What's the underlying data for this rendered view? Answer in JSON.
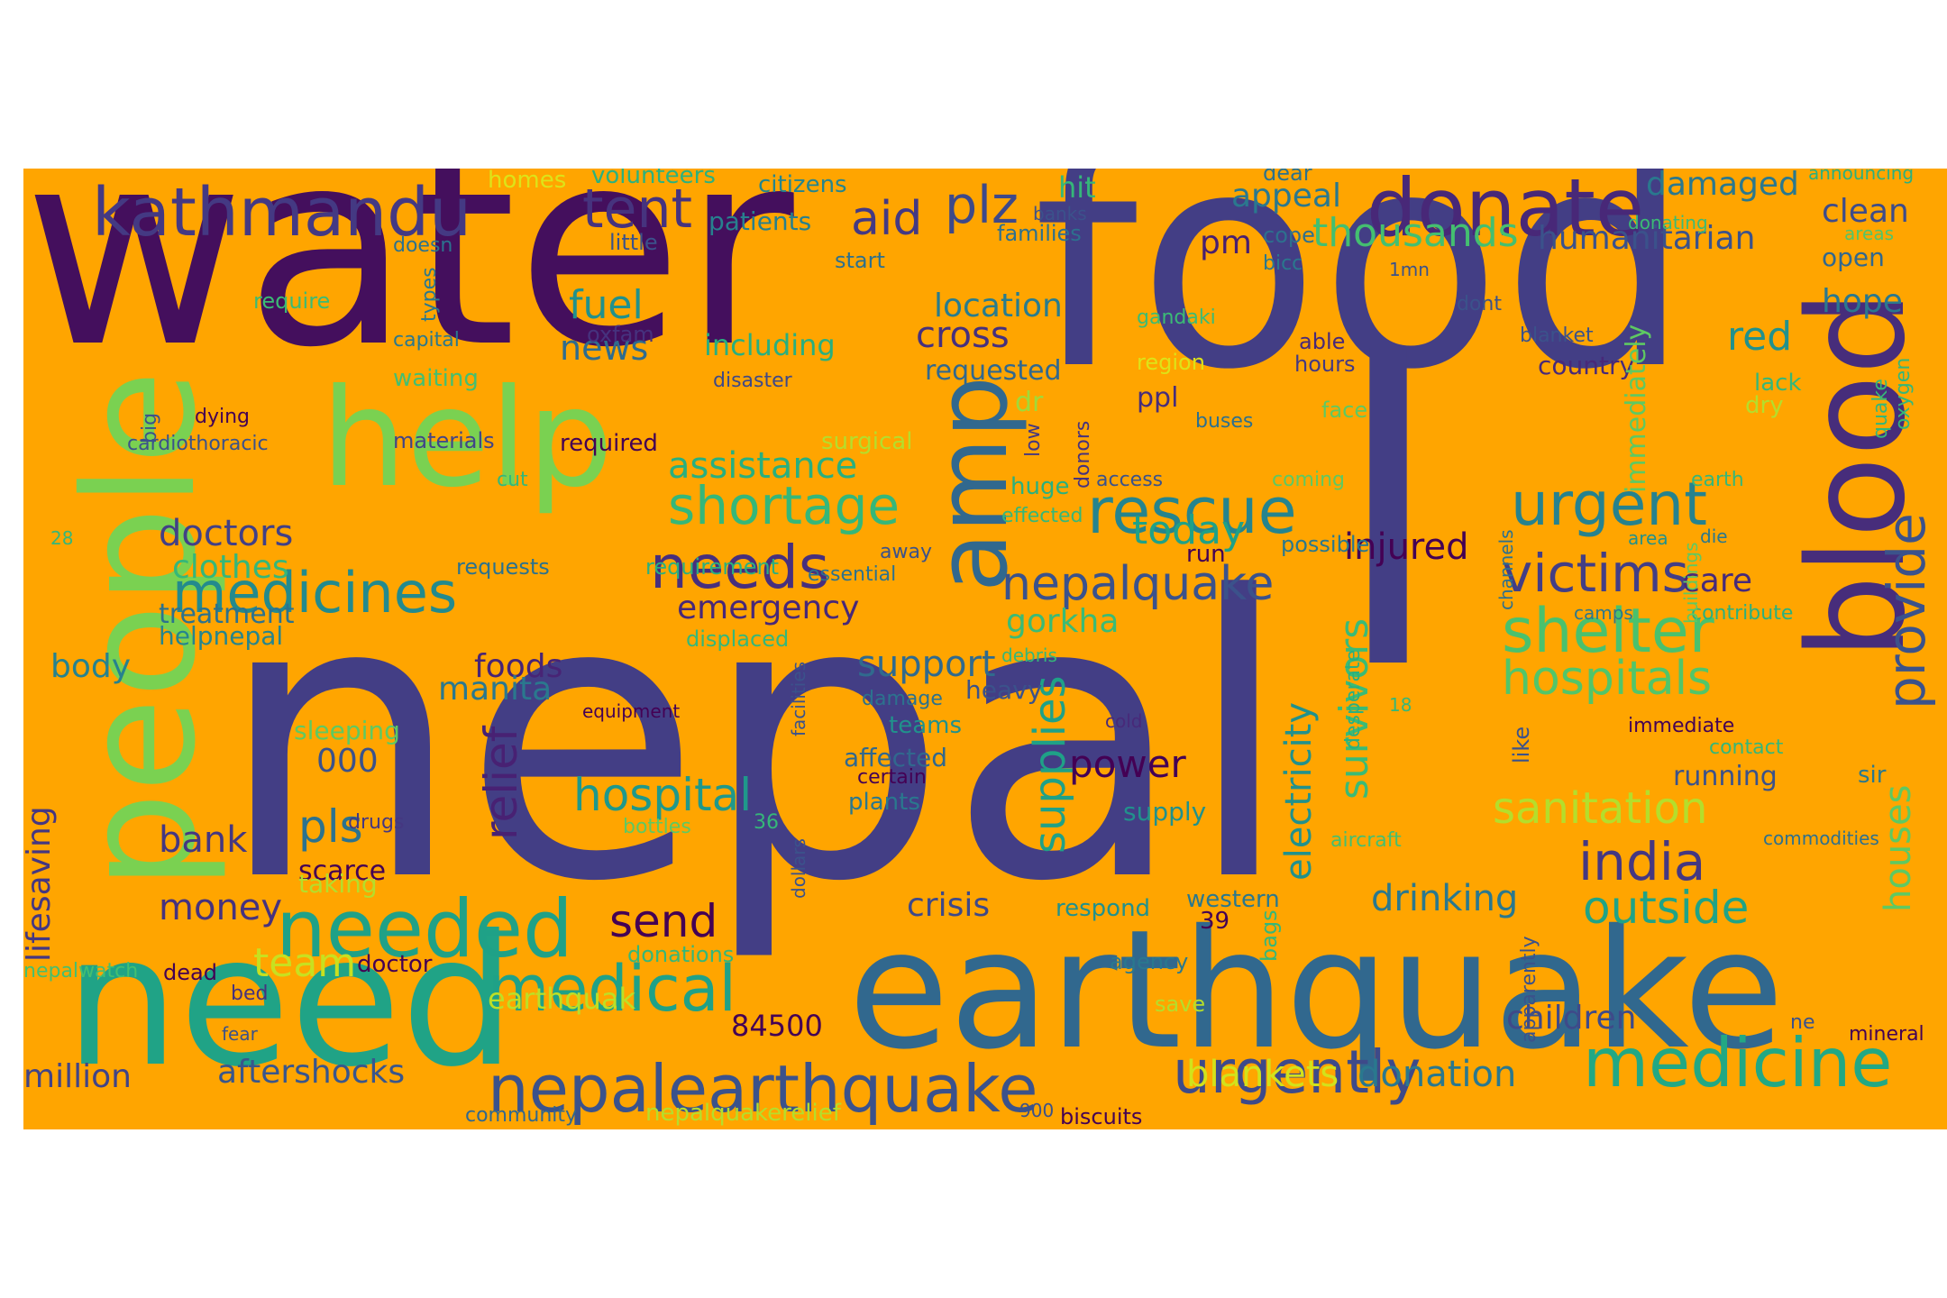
{
  "cloud": {
    "background": "#ffa500",
    "words": [
      {
        "text": "water",
        "color": "#440f5d"
      },
      {
        "text": "food",
        "color": "#433e85"
      },
      {
        "text": "nepal",
        "color": "#433e85"
      },
      {
        "text": "l",
        "color": "#433e85"
      },
      {
        "text": "earthquake",
        "color": "#31688e"
      },
      {
        "text": "need",
        "color": "#20a386"
      },
      {
        "text": "people",
        "color": "#7ad151"
      },
      {
        "text": "help",
        "color": "#7ad151"
      },
      {
        "text": "blood",
        "color": "#472d7b"
      },
      {
        "text": "amp",
        "color": "#31688e"
      },
      {
        "text": "donate",
        "color": "#482878"
      },
      {
        "text": "kathmandu",
        "color": "#443983"
      },
      {
        "text": "tent",
        "color": "#46337e"
      },
      {
        "text": "aid",
        "color": "#443983"
      },
      {
        "text": "plz",
        "color": "#3e4989"
      },
      {
        "text": "hit",
        "color": "#35b779"
      },
      {
        "text": "appeal",
        "color": "#2a788e"
      },
      {
        "text": "damaged",
        "color": "#2a788e"
      },
      {
        "text": "clean",
        "color": "#3e4c8a"
      },
      {
        "text": "thousands",
        "color": "#44bf70"
      },
      {
        "text": "humanitarian",
        "color": "#3b528b"
      },
      {
        "text": "pm",
        "color": "#481f70"
      },
      {
        "text": "open",
        "color": "#31688e"
      },
      {
        "text": "hope",
        "color": "#2a788e"
      },
      {
        "text": "red",
        "color": "#21918c"
      },
      {
        "text": "medicines",
        "color": "#238a8d"
      },
      {
        "text": "needs",
        "color": "#472f7d"
      },
      {
        "text": "needed",
        "color": "#1fa187"
      },
      {
        "text": "medicine",
        "color": "#22a884"
      },
      {
        "text": "nepalearthquake",
        "color": "#3b528b"
      },
      {
        "text": "urgently",
        "color": "#3e4a89"
      },
      {
        "text": "rescue",
        "color": "#25848e"
      },
      {
        "text": "urgent",
        "color": "#26828e"
      },
      {
        "text": "nepalquake",
        "color": "#3b528b"
      },
      {
        "text": "victims",
        "color": "#433e85"
      },
      {
        "text": "shelter",
        "color": "#4ac16d"
      },
      {
        "text": "tents",
        "color": "#22a884"
      },
      {
        "text": "hospitals",
        "color": "#52c569"
      },
      {
        "text": "provide",
        "color": "#3b528b"
      },
      {
        "text": "shortage",
        "color": "#35b779"
      },
      {
        "text": "assistance",
        "color": "#29af7f"
      },
      {
        "text": "medical",
        "color": "#1fa187"
      },
      {
        "text": "hospital",
        "color": "#1f988b"
      },
      {
        "text": "india",
        "color": "#453781"
      },
      {
        "text": "sanitation",
        "color": "#b5de2b"
      },
      {
        "text": "outside",
        "color": "#20a386"
      },
      {
        "text": "send",
        "color": "#440154"
      },
      {
        "text": "relief",
        "color": "#482173"
      },
      {
        "text": "supplies",
        "color": "#1fa187"
      },
      {
        "text": "survivors",
        "color": "#3bbb75"
      },
      {
        "text": "electricity",
        "color": "#21918c"
      },
      {
        "text": "drinking",
        "color": "#2a788e"
      },
      {
        "text": "houses",
        "color": "#5ec962"
      },
      {
        "text": "team",
        "color": "#c8e020"
      },
      {
        "text": "blankets",
        "color": "#d2e21b"
      },
      {
        "text": "donation",
        "color": "#2a788e"
      },
      {
        "text": "children",
        "color": "#3e4a89"
      },
      {
        "text": "million",
        "color": "#414487"
      },
      {
        "text": "aftershocks",
        "color": "#39568c"
      },
      {
        "text": "earthquak",
        "color": "#bddf26"
      },
      {
        "text": "84500",
        "color": "#440154"
      },
      {
        "text": "doctors",
        "color": "#424086"
      },
      {
        "text": "clothes",
        "color": "#35b779"
      },
      {
        "text": "treatment",
        "color": "#2c728e"
      },
      {
        "text": "helpnepal",
        "color": "#25858e"
      },
      {
        "text": "body",
        "color": "#26828e"
      },
      {
        "text": "foods",
        "color": "#482475"
      },
      {
        "text": "manita",
        "color": "#2a788e"
      },
      {
        "text": "emergency",
        "color": "#482878"
      },
      {
        "text": "gorkha",
        "color": "#3bbb75"
      },
      {
        "text": "injured",
        "color": "#440154"
      },
      {
        "text": "care",
        "color": "#472a7a"
      },
      {
        "text": "today",
        "color": "#1fa187"
      },
      {
        "text": "support",
        "color": "#306a8e"
      },
      {
        "text": "heavy",
        "color": "#3b528b"
      },
      {
        "text": "power",
        "color": "#440154"
      },
      {
        "text": "000",
        "color": "#3b528b"
      },
      {
        "text": "pls",
        "color": "#2c728e"
      },
      {
        "text": "bank",
        "color": "#453781"
      },
      {
        "text": "scarce",
        "color": "#440154"
      },
      {
        "text": "money",
        "color": "#46327e"
      },
      {
        "text": "crisis",
        "color": "#3e4989"
      },
      {
        "text": "fuel",
        "color": "#21918c"
      },
      {
        "text": "news",
        "color": "#2f6c8e"
      },
      {
        "text": "including",
        "color": "#29af7f"
      },
      {
        "text": "cross",
        "color": "#46307e"
      },
      {
        "text": "location",
        "color": "#287c8e"
      },
      {
        "text": "requested",
        "color": "#31688e"
      },
      {
        "text": "dr",
        "color": "#a0da39"
      },
      {
        "text": "ppl",
        "color": "#472d7b"
      },
      {
        "text": "country",
        "color": "#482979"
      },
      {
        "text": "lifesaving",
        "color": "#453781"
      },
      {
        "text": "doctor",
        "color": "#440154"
      },
      {
        "text": "dead",
        "color": "#440154"
      },
      {
        "text": "bed",
        "color": "#46327e"
      },
      {
        "text": "citizens",
        "color": "#25858e"
      },
      {
        "text": "patients",
        "color": "#27808e"
      },
      {
        "text": "volunteers",
        "color": "#2cb17e"
      },
      {
        "text": "homes",
        "color": "#dde318"
      },
      {
        "text": "little",
        "color": "#3b528b"
      },
      {
        "text": "start",
        "color": "#2d708e"
      },
      {
        "text": "families",
        "color": "#2d708e"
      },
      {
        "text": "dear",
        "color": "#2c728e"
      },
      {
        "text": "cope",
        "color": "#2d708e"
      },
      {
        "text": "bicc",
        "color": "#2a788e"
      },
      {
        "text": "1mn",
        "color": "#3b528b"
      },
      {
        "text": "dont",
        "color": "#3b528b"
      },
      {
        "text": "able",
        "color": "#482979"
      },
      {
        "text": "hours",
        "color": "#443983"
      },
      {
        "text": "blanket",
        "color": "#3b528b"
      },
      {
        "text": "lack",
        "color": "#35b779"
      },
      {
        "text": "dry",
        "color": "#b5de2b"
      },
      {
        "text": "face",
        "color": "#5ec962"
      },
      {
        "text": "oxygen",
        "color": "#35b779"
      },
      {
        "text": "quake",
        "color": "#35b779"
      },
      {
        "text": "announcing",
        "color": "#2ab07f"
      },
      {
        "text": "areas",
        "color": "#52c569"
      },
      {
        "text": "donating",
        "color": "#3bbb75"
      },
      {
        "text": "banks",
        "color": "#3b528b"
      },
      {
        "text": "doesn",
        "color": "#2c728e"
      },
      {
        "text": "types",
        "color": "#2a788e"
      },
      {
        "text": "require",
        "color": "#3bbb75"
      },
      {
        "text": "capital",
        "color": "#2a788e"
      },
      {
        "text": "waiting",
        "color": "#44bf70"
      },
      {
        "text": "oxfam",
        "color": "#46327e"
      },
      {
        "text": "disaster",
        "color": "#3e4989"
      },
      {
        "text": "region",
        "color": "#dde318"
      },
      {
        "text": "gandaki",
        "color": "#3bbb75"
      },
      {
        "text": "buses",
        "color": "#2d708e"
      },
      {
        "text": "low",
        "color": "#453781"
      },
      {
        "text": "donors",
        "color": "#46327e"
      },
      {
        "text": "dying",
        "color": "#440154"
      },
      {
        "text": "big",
        "color": "#3b528b"
      },
      {
        "text": "cardiothoracic",
        "color": "#3b528b"
      },
      {
        "text": "materials",
        "color": "#414487"
      },
      {
        "text": "required",
        "color": "#440154"
      },
      {
        "text": "surgical",
        "color": "#b5de2b"
      },
      {
        "text": "huge",
        "color": "#2ab07f"
      },
      {
        "text": "access",
        "color": "#3b528b"
      },
      {
        "text": "effected",
        "color": "#35b779"
      },
      {
        "text": "coming",
        "color": "#5ec962"
      },
      {
        "text": "earth",
        "color": "#35b779"
      },
      {
        "text": "area",
        "color": "#21918c"
      },
      {
        "text": "die",
        "color": "#2a788e"
      },
      {
        "text": "possible",
        "color": "#2a788e"
      },
      {
        "text": "run",
        "color": "#440154"
      },
      {
        "text": "away",
        "color": "#3b528b"
      },
      {
        "text": "essential",
        "color": "#2c728e"
      },
      {
        "text": "requirement",
        "color": "#2ab07f"
      },
      {
        "text": "requests",
        "color": "#2c728e"
      },
      {
        "text": "cut",
        "color": "#35b779"
      },
      {
        "text": "28",
        "color": "#35b779"
      },
      {
        "text": "immediately",
        "color": "#5ec962"
      },
      {
        "text": "sleeping",
        "color": "#5ec962"
      },
      {
        "text": "taking",
        "color": "#b5de2b"
      },
      {
        "text": "equipment",
        "color": "#440154"
      },
      {
        "text": "facilities",
        "color": "#3b528b"
      },
      {
        "text": "damage",
        "color": "#2c728e"
      },
      {
        "text": "teams",
        "color": "#21918c"
      },
      {
        "text": "cold",
        "color": "#482979"
      },
      {
        "text": "affected",
        "color": "#31688e"
      },
      {
        "text": "certain",
        "color": "#440154"
      },
      {
        "text": "plants",
        "color": "#2a788e"
      },
      {
        "text": "drugs",
        "color": "#453781"
      },
      {
        "text": "bottles",
        "color": "#5ec962"
      },
      {
        "text": "36",
        "color": "#35b779"
      },
      {
        "text": "dollars",
        "color": "#3b528b"
      },
      {
        "text": "donations",
        "color": "#35b779"
      },
      {
        "text": "nepalwatch",
        "color": "#44bf70"
      },
      {
        "text": "fear",
        "color": "#3b528b"
      },
      {
        "text": "community",
        "color": "#31688e"
      },
      {
        "text": "nepalquakerelief",
        "color": "#b5de2b"
      },
      {
        "text": "900",
        "color": "#3b528b"
      },
      {
        "text": "biscuits",
        "color": "#440154"
      },
      {
        "text": "debris",
        "color": "#35b779"
      },
      {
        "text": "desperate",
        "color": "#2ab07f"
      },
      {
        "text": "18",
        "color": "#35b779"
      },
      {
        "text": "channels",
        "color": "#2d708e"
      },
      {
        "text": "like",
        "color": "#3b528b"
      },
      {
        "text": "immediate",
        "color": "#440154"
      },
      {
        "text": "contact",
        "color": "#35b779"
      },
      {
        "text": "running",
        "color": "#3b528b"
      },
      {
        "text": "sir",
        "color": "#2a788e"
      },
      {
        "text": "camps",
        "color": "#2a788e"
      },
      {
        "text": "contribute",
        "color": "#2ab07f"
      },
      {
        "text": "displaced",
        "color": "#35b779"
      },
      {
        "text": "supply",
        "color": "#21918c"
      },
      {
        "text": "aircraft",
        "color": "#44bf70"
      },
      {
        "text": "commodities",
        "color": "#2d708e"
      },
      {
        "text": "respond",
        "color": "#21918c"
      },
      {
        "text": "western",
        "color": "#2a788e"
      },
      {
        "text": "39",
        "color": "#440154"
      },
      {
        "text": "agency",
        "color": "#2a788e"
      },
      {
        "text": "bags",
        "color": "#35b779"
      },
      {
        "text": "apparently",
        "color": "#3b528b"
      },
      {
        "text": "save",
        "color": "#b5de2b"
      },
      {
        "text": "ne",
        "color": "#3b528b"
      },
      {
        "text": "mineral",
        "color": "#440154"
      },
      {
        "text": "buildings",
        "color": "#5ec962"
      }
    ]
  }
}
